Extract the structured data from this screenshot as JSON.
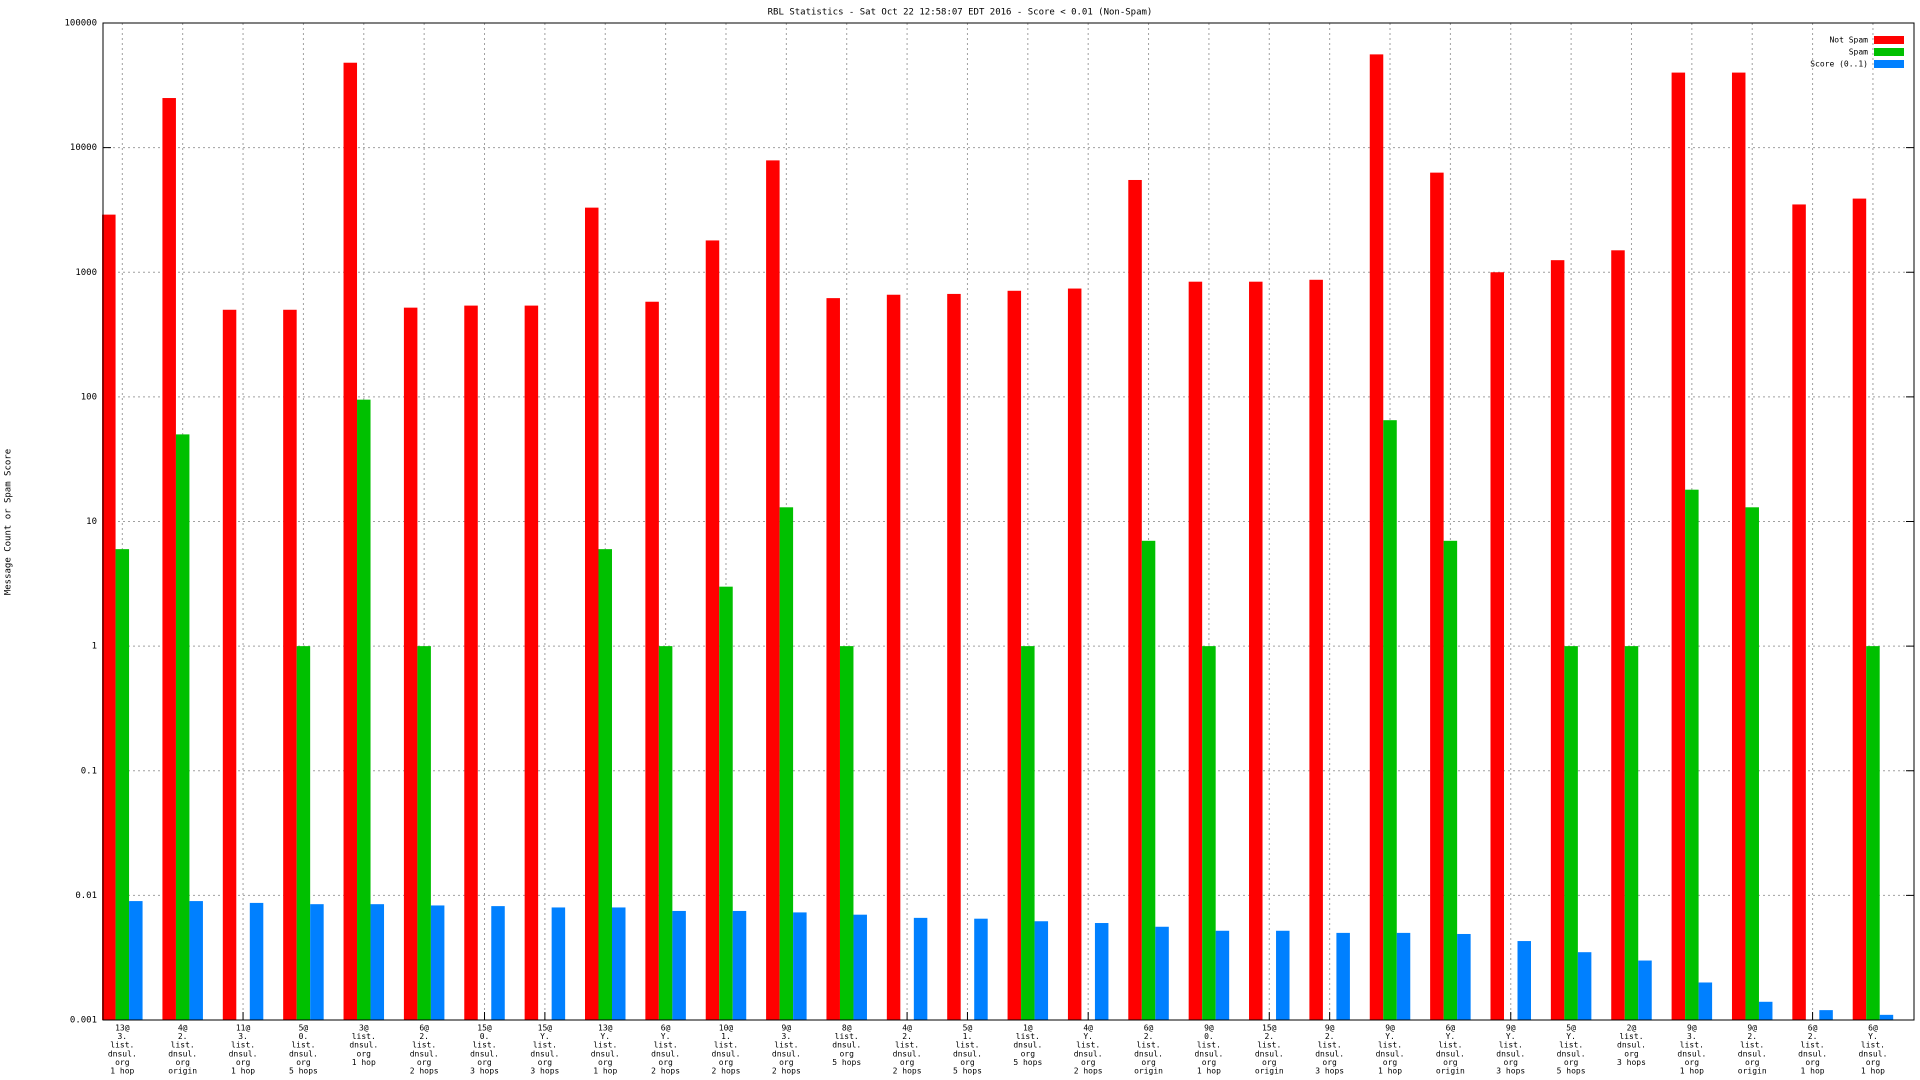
{
  "chart_data": {
    "type": "bar",
    "title": "RBL Statistics - Sat Oct 22 12:58:07 EDT 2016 - Score < 0.01 (Non-Spam)",
    "y_label": "Message Count or Spam Score",
    "yscale": "log",
    "grid": true,
    "legend": "top-right",
    "ylim": [
      0.001,
      100000
    ],
    "yticks": [
      0.001,
      0.01,
      0.1,
      1,
      10,
      100,
      1000,
      10000,
      100000
    ],
    "categories": [
      [
        "13@",
        "3.",
        "list.",
        "dnsul.",
        "org",
        "1 hop"
      ],
      [
        "4@",
        "2.",
        "list.",
        "dnsul.",
        "org",
        "origin"
      ],
      [
        "11@",
        "3.",
        "list.",
        "dnsul.",
        "org",
        "1 hop"
      ],
      [
        "5@",
        "0.",
        "list.",
        "dnsul.",
        "org",
        "5 hops"
      ],
      [
        "3@",
        "list.",
        "dnsul.",
        "org",
        "1 hop"
      ],
      [
        "6@",
        "2.",
        "list.",
        "dnsul.",
        "org",
        "2 hops"
      ],
      [
        "15@",
        "0.",
        "list.",
        "dnsul.",
        "org",
        "3 hops"
      ],
      [
        "15@",
        "Y.",
        "list.",
        "dnsul.",
        "org",
        "3 hops"
      ],
      [
        "13@",
        "Y.",
        "list.",
        "dnsul.",
        "org",
        "1 hop"
      ],
      [
        "6@",
        "Y.",
        "list.",
        "dnsul.",
        "org",
        "2 hops"
      ],
      [
        "10@",
        "1.",
        "list.",
        "dnsul.",
        "org",
        "2 hops"
      ],
      [
        "9@",
        "3.",
        "list.",
        "dnsul.",
        "org",
        "2 hops"
      ],
      [
        "8@",
        "list.",
        "dnsul.",
        "org",
        "5 hops"
      ],
      [
        "4@",
        "2.",
        "list.",
        "dnsul.",
        "org",
        "2 hops"
      ],
      [
        "5@",
        "1.",
        "list.",
        "dnsul.",
        "org",
        "5 hops"
      ],
      [
        "1@",
        "list.",
        "dnsul.",
        "org",
        "5 hops"
      ],
      [
        "4@",
        "Y.",
        "list.",
        "dnsul.",
        "org",
        "2 hops"
      ],
      [
        "6@",
        "2.",
        "list.",
        "dnsul.",
        "org",
        "origin"
      ],
      [
        "9@",
        "0.",
        "list.",
        "dnsul.",
        "org",
        "1 hop"
      ],
      [
        "15@",
        "2.",
        "list.",
        "dnsul.",
        "org",
        "origin"
      ],
      [
        "9@",
        "2.",
        "list.",
        "dnsul.",
        "org",
        "3 hops"
      ],
      [
        "9@",
        "Y.",
        "list.",
        "dnsul.",
        "org",
        "1 hop"
      ],
      [
        "6@",
        "Y.",
        "list.",
        "dnsul.",
        "org",
        "origin"
      ],
      [
        "9@",
        "Y.",
        "list.",
        "dnsul.",
        "org",
        "3 hops"
      ],
      [
        "5@",
        "Y.",
        "list.",
        "dnsul.",
        "org",
        "5 hops"
      ],
      [
        "2@",
        "list.",
        "dnsul.",
        "org",
        "3 hops"
      ],
      [
        "9@",
        "3.",
        "list.",
        "dnsul.",
        "org",
        "1 hop"
      ],
      [
        "9@",
        "2.",
        "list.",
        "dnsul.",
        "org",
        "origin"
      ],
      [
        "6@",
        "2.",
        "list.",
        "dnsul.",
        "org",
        "1 hop"
      ],
      [
        "6@",
        "Y.",
        "list.",
        "dnsul.",
        "org",
        "1 hop"
      ]
    ],
    "series": [
      {
        "name": "Not Spam",
        "color": "#ff0000",
        "values": [
          2900,
          25000,
          500,
          500,
          48000,
          520,
          540,
          540,
          3300,
          580,
          1800,
          7900,
          620,
          660,
          670,
          710,
          740,
          5500,
          840,
          840,
          870,
          56000,
          6300,
          1000,
          1250,
          1500,
          40000,
          40000,
          3500,
          3900
        ]
      },
      {
        "name": "Spam",
        "color": "#00c000",
        "values": [
          6,
          50,
          null,
          1,
          95,
          1,
          null,
          null,
          6,
          1,
          3,
          13,
          1,
          null,
          null,
          1,
          null,
          7,
          1,
          null,
          null,
          65,
          7,
          null,
          1,
          1,
          18,
          13,
          null,
          1
        ]
      },
      {
        "name": "Score (0..1)",
        "color": "#0080ff",
        "values": [
          0.009,
          0.009,
          0.0087,
          0.0085,
          0.0085,
          0.0083,
          0.0082,
          0.008,
          0.008,
          0.0075,
          0.0075,
          0.0073,
          0.007,
          0.0066,
          0.0065,
          0.0062,
          0.006,
          0.0056,
          0.0052,
          0.0052,
          0.005,
          0.005,
          0.0049,
          0.0043,
          0.0035,
          0.003,
          0.002,
          0.0014,
          0.0012,
          0.0011
        ]
      }
    ]
  }
}
